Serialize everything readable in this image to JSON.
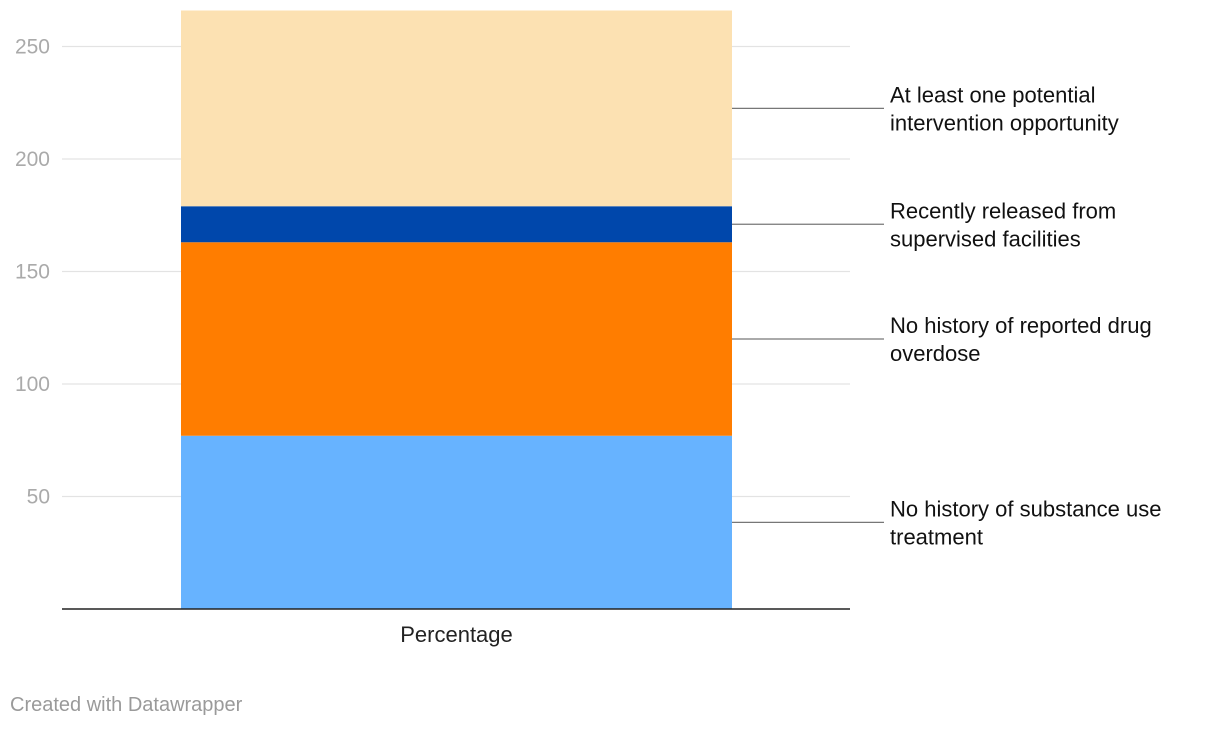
{
  "chart_data": {
    "type": "bar",
    "stacked": true,
    "categories": [
      "Percentage"
    ],
    "series": [
      {
        "name": "No history of substance use treatment",
        "values": [
          77
        ],
        "color": "#67b3ff"
      },
      {
        "name": "No history of reported drug overdose",
        "values": [
          86
        ],
        "color": "#ff7d00"
      },
      {
        "name": "Recently released from supervised facilities",
        "values": [
          16
        ],
        "color": "#0047ab"
      },
      {
        "name": "At least one potential intervention opportunity",
        "values": [
          87
        ],
        "color": "#fce1b2"
      }
    ],
    "yticks": [
      50,
      100,
      150,
      200,
      250
    ],
    "ylim": [
      0,
      266
    ],
    "grid": true,
    "legend": "direct labels, right",
    "title": "",
    "xlabel": "",
    "ylabel": ""
  },
  "footer": {
    "credit": "Created with Datawrapper"
  }
}
